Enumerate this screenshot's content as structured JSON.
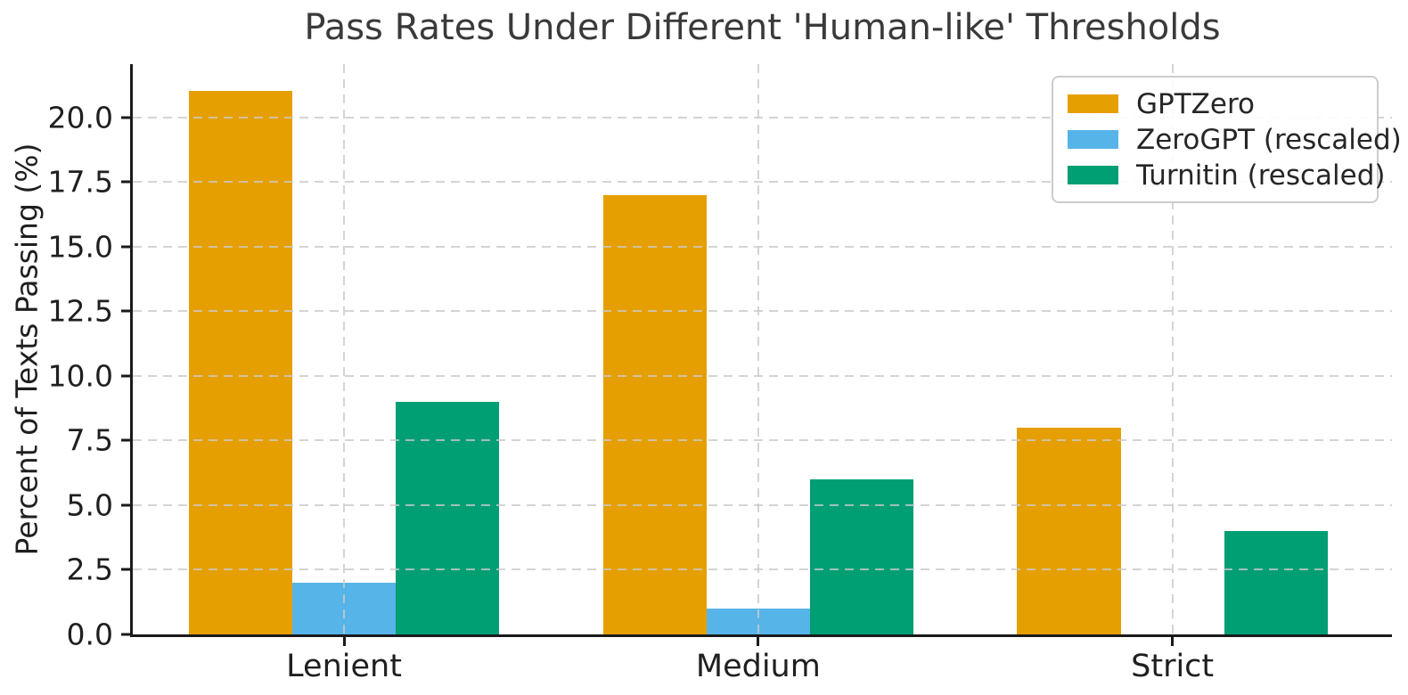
{
  "title": "Pass Rates Under Different 'Human-like' Thresholds",
  "chart_data": {
    "type": "bar",
    "title": "Pass Rates Under Different 'Human-like' Thresholds",
    "xlabel": "",
    "ylabel": "Percent of Texts Passing (%)",
    "categories": [
      "Lenient",
      "Medium",
      "Strict"
    ],
    "series": [
      {
        "name": "GPTZero",
        "color": "#E69F00",
        "values": [
          21,
          17,
          8
        ]
      },
      {
        "name": "ZeroGPT (rescaled)",
        "color": "#56B4E9",
        "values": [
          2,
          1,
          0
        ]
      },
      {
        "name": "Turnitin (rescaled)",
        "color": "#009E73",
        "values": [
          9,
          6,
          4
        ]
      }
    ],
    "ylim": [
      0,
      22.05
    ],
    "xlim": [
      -0.51,
      2.53
    ],
    "yticks": [
      0.0,
      2.5,
      5.0,
      7.5,
      10.0,
      12.5,
      15.0,
      17.5,
      20.0
    ],
    "ytick_labels": [
      "0.0",
      "2.5",
      "5.0",
      "7.5",
      "10.0",
      "12.5",
      "15.0",
      "17.5",
      "20.0"
    ],
    "bar_width": 0.25,
    "bar_offsets": [
      -0.25,
      0,
      0.25
    ],
    "grid": true,
    "grid_style": "dashed",
    "legend_position": "upper right",
    "colors": {
      "axis": "#1a1a1a",
      "grid": "#cccccc",
      "title_text": "#3a3a3a",
      "tick_text": "#1f1f1f",
      "background": "#ffffff"
    }
  }
}
